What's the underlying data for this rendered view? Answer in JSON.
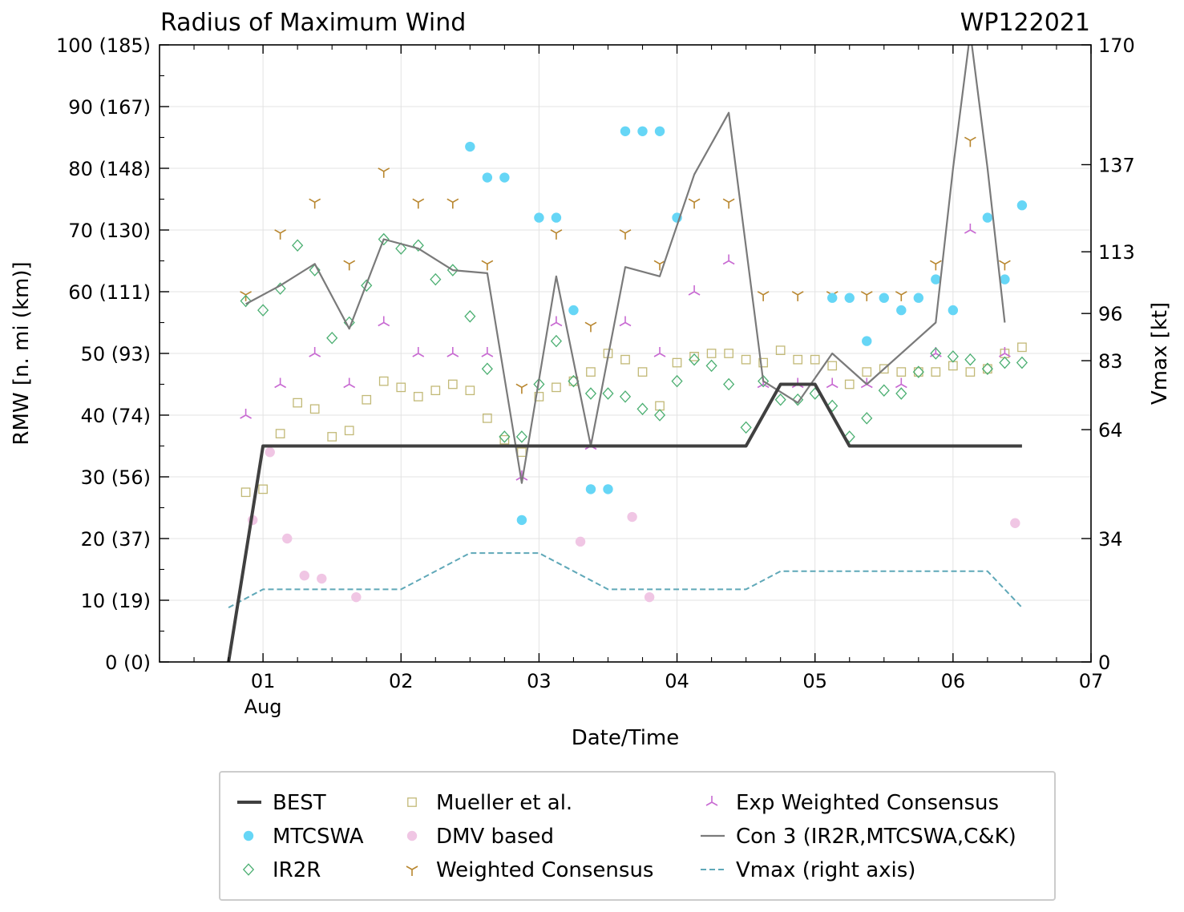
{
  "chart_data": {
    "type": "line",
    "title": "Radius of Maximum Wind",
    "storm_id": "WP122021",
    "xlabel": "Date/Time",
    "ylabel": "RMW [n. mi (km)]",
    "y2label": "Vmax [kt]",
    "x_unit": "days since 2021-08-01 00Z",
    "xlim": [
      -0.75,
      6.0
    ],
    "ylim": [
      0,
      100
    ],
    "y2lim": [
      0,
      170
    ],
    "x_ticks": [
      {
        "x": 0,
        "label": "01",
        "sublabel": "Aug"
      },
      {
        "x": 1,
        "label": "02"
      },
      {
        "x": 2,
        "label": "03"
      },
      {
        "x": 3,
        "label": "04"
      },
      {
        "x": 4,
        "label": "05"
      },
      {
        "x": 5,
        "label": "06"
      },
      {
        "x": 6,
        "label": "07"
      }
    ],
    "y_ticks": [
      {
        "v": 0,
        "label": "0 (0)"
      },
      {
        "v": 10,
        "label": "10 (19)"
      },
      {
        "v": 20,
        "label": "20 (37)"
      },
      {
        "v": 30,
        "label": "30 (56)"
      },
      {
        "v": 40,
        "label": "40 (74)"
      },
      {
        "v": 50,
        "label": "50 (93)"
      },
      {
        "v": 60,
        "label": "60 (111)"
      },
      {
        "v": 70,
        "label": "70 (130)"
      },
      {
        "v": 80,
        "label": "80 (148)"
      },
      {
        "v": 90,
        "label": "90 (167)"
      },
      {
        "v": 100,
        "label": "100 (185)"
      }
    ],
    "y2_ticks": [
      {
        "v": 0,
        "label": "0"
      },
      {
        "v": 34,
        "label": "34"
      },
      {
        "v": 64,
        "label": "64"
      },
      {
        "v": 83,
        "label": "83"
      },
      {
        "v": 96,
        "label": "96"
      },
      {
        "v": 113,
        "label": "113"
      },
      {
        "v": 137,
        "label": "137"
      },
      {
        "v": 170,
        "label": "170"
      }
    ],
    "series": [
      {
        "name": "BEST",
        "kind": "line",
        "color": "#404040",
        "points": [
          [
            -0.25,
            0
          ],
          [
            0,
            35
          ],
          [
            3.5,
            35
          ],
          [
            3.75,
            45
          ],
          [
            4.0,
            45
          ],
          [
            4.25,
            35
          ],
          [
            5.5,
            35
          ]
        ]
      },
      {
        "name": "MTCSWA",
        "kind": "marker",
        "marker": "circle",
        "color": "#66d6f6",
        "points": [
          [
            1.5,
            83.5
          ],
          [
            1.625,
            78.5
          ],
          [
            1.75,
            78.5
          ],
          [
            2.0,
            72
          ],
          [
            2.125,
            72
          ],
          [
            2.25,
            57
          ],
          [
            2.375,
            28
          ],
          [
            2.5,
            28
          ],
          [
            1.875,
            23
          ],
          [
            2.625,
            86
          ],
          [
            2.75,
            86
          ],
          [
            2.875,
            86
          ],
          [
            3.0,
            72
          ],
          [
            4.125,
            59
          ],
          [
            4.25,
            59
          ],
          [
            4.375,
            52
          ],
          [
            4.5,
            59
          ],
          [
            4.625,
            57
          ],
          [
            4.75,
            59
          ],
          [
            4.875,
            62
          ],
          [
            5.0,
            57
          ],
          [
            5.25,
            72
          ],
          [
            5.375,
            62
          ],
          [
            5.5,
            74
          ]
        ]
      },
      {
        "name": "IR2R",
        "kind": "marker",
        "marker": "diamond",
        "color": "#4caf72",
        "points": [
          [
            -0.125,
            58.5
          ],
          [
            0,
            57
          ],
          [
            0.125,
            60.5
          ],
          [
            0.25,
            67.5
          ],
          [
            0.375,
            63.5
          ],
          [
            0.5,
            52.5
          ],
          [
            0.625,
            55
          ],
          [
            0.75,
            61
          ],
          [
            0.875,
            68.5
          ],
          [
            1.0,
            67
          ],
          [
            1.125,
            67.5
          ],
          [
            1.25,
            62
          ],
          [
            1.375,
            63.5
          ],
          [
            1.5,
            56
          ],
          [
            1.625,
            47.5
          ],
          [
            1.75,
            36.5
          ],
          [
            1.875,
            36.5
          ],
          [
            2.0,
            45
          ],
          [
            2.125,
            52
          ],
          [
            2.25,
            45.5
          ],
          [
            2.375,
            43.5
          ],
          [
            2.5,
            43.5
          ],
          [
            2.625,
            43
          ],
          [
            2.75,
            41
          ],
          [
            2.875,
            40
          ],
          [
            3.0,
            45.5
          ],
          [
            3.125,
            49
          ],
          [
            3.25,
            48
          ],
          [
            3.375,
            45
          ],
          [
            3.5,
            38
          ],
          [
            3.625,
            45.5
          ],
          [
            3.75,
            42.5
          ],
          [
            3.875,
            42.5
          ],
          [
            4.0,
            43.5
          ],
          [
            4.125,
            41.5
          ],
          [
            4.25,
            36.5
          ],
          [
            4.375,
            39.5
          ],
          [
            4.5,
            44
          ],
          [
            4.625,
            43.5
          ],
          [
            4.75,
            47
          ],
          [
            4.875,
            50
          ],
          [
            5.0,
            49.5
          ],
          [
            5.125,
            49
          ],
          [
            5.25,
            47.5
          ],
          [
            5.375,
            48.5
          ],
          [
            5.5,
            48.5
          ]
        ]
      },
      {
        "name": "Mueller et al.",
        "kind": "marker",
        "marker": "square",
        "color": "#c2b977",
        "points": [
          [
            -0.125,
            27.5
          ],
          [
            0,
            28
          ],
          [
            0.125,
            37
          ],
          [
            0.25,
            42
          ],
          [
            0.375,
            41
          ],
          [
            0.5,
            36.5
          ],
          [
            0.625,
            37.5
          ],
          [
            0.75,
            42.5
          ],
          [
            0.875,
            45.5
          ],
          [
            1.0,
            44.5
          ],
          [
            1.125,
            43
          ],
          [
            1.25,
            44
          ],
          [
            1.375,
            45
          ],
          [
            1.5,
            44
          ],
          [
            1.625,
            39.5
          ],
          [
            1.75,
            36
          ],
          [
            1.875,
            34
          ],
          [
            2.0,
            43
          ],
          [
            2.125,
            44.5
          ],
          [
            2.25,
            45.5
          ],
          [
            2.375,
            47
          ],
          [
            2.5,
            50
          ],
          [
            2.625,
            49
          ],
          [
            2.75,
            47
          ],
          [
            2.875,
            41.5
          ],
          [
            3.0,
            48.5
          ],
          [
            3.125,
            49.5
          ],
          [
            3.25,
            50
          ],
          [
            3.375,
            50
          ],
          [
            3.5,
            49
          ],
          [
            3.625,
            48.5
          ],
          [
            3.75,
            50.5
          ],
          [
            3.875,
            49
          ],
          [
            4.0,
            49
          ],
          [
            4.125,
            48
          ],
          [
            4.25,
            45
          ],
          [
            4.375,
            47
          ],
          [
            4.5,
            47.5
          ],
          [
            4.625,
            47
          ],
          [
            4.75,
            47
          ],
          [
            4.875,
            47
          ],
          [
            5.0,
            48
          ],
          [
            5.125,
            47
          ],
          [
            5.25,
            47.5
          ],
          [
            5.375,
            50
          ],
          [
            5.5,
            51
          ]
        ]
      },
      {
        "name": "DMV based",
        "kind": "marker",
        "marker": "circle",
        "color": "#f0c6e4",
        "points": [
          [
            -0.075,
            23
          ],
          [
            0.05,
            34
          ],
          [
            0.175,
            20
          ],
          [
            0.3,
            14
          ],
          [
            0.425,
            13.5
          ],
          [
            0.675,
            10.5
          ],
          [
            2.3,
            19.5
          ],
          [
            2.675,
            23.5
          ],
          [
            2.8,
            10.5
          ],
          [
            5.45,
            22.5
          ]
        ]
      },
      {
        "name": "Weighted Consensus",
        "kind": "marker",
        "marker": "tri_down",
        "color": "#b8862e",
        "points": [
          [
            -0.125,
            59.5
          ],
          [
            0.125,
            69.5
          ],
          [
            0.375,
            74.5
          ],
          [
            0.625,
            64.5
          ],
          [
            0.875,
            79.5
          ],
          [
            1.125,
            74.5
          ],
          [
            1.375,
            74.5
          ],
          [
            1.625,
            64.5
          ],
          [
            1.875,
            44.5
          ],
          [
            2.125,
            69.5
          ],
          [
            2.375,
            54.5
          ],
          [
            2.625,
            69.5
          ],
          [
            2.875,
            64.5
          ],
          [
            3.125,
            74.5
          ],
          [
            3.375,
            74.5
          ],
          [
            3.625,
            59.5
          ],
          [
            3.875,
            59.5
          ],
          [
            4.125,
            59.5
          ],
          [
            4.375,
            59.5
          ],
          [
            4.625,
            59.5
          ],
          [
            4.875,
            64.5
          ],
          [
            5.125,
            84.5
          ],
          [
            5.375,
            64.5
          ]
        ]
      },
      {
        "name": "Exp Weighted Consensus",
        "kind": "marker",
        "marker": "tri_up",
        "color": "#c86ad2",
        "points": [
          [
            -0.125,
            40
          ],
          [
            0.125,
            45
          ],
          [
            0.375,
            50
          ],
          [
            0.625,
            45
          ],
          [
            0.875,
            55
          ],
          [
            1.125,
            50
          ],
          [
            1.375,
            50
          ],
          [
            1.625,
            50
          ],
          [
            1.875,
            30
          ],
          [
            2.125,
            55
          ],
          [
            2.375,
            35
          ],
          [
            2.625,
            55
          ],
          [
            2.875,
            50
          ],
          [
            3.125,
            60
          ],
          [
            3.375,
            65
          ],
          [
            3.625,
            45
          ],
          [
            3.875,
            45
          ],
          [
            4.125,
            45
          ],
          [
            4.375,
            45
          ],
          [
            4.625,
            45
          ],
          [
            4.875,
            50
          ],
          [
            5.125,
            70
          ],
          [
            5.375,
            50
          ]
        ]
      },
      {
        "name": "Con 3 (IR2R,MTCSWA,C&K)",
        "kind": "line",
        "color": "#7a7a7a",
        "points": [
          [
            -0.125,
            58
          ],
          [
            0.125,
            61
          ],
          [
            0.375,
            64.5
          ],
          [
            0.625,
            54
          ],
          [
            0.875,
            68.5
          ],
          [
            1.125,
            67
          ],
          [
            1.375,
            63.5
          ],
          [
            1.625,
            63
          ],
          [
            1.875,
            29
          ],
          [
            2.125,
            62.5
          ],
          [
            2.375,
            35
          ],
          [
            2.625,
            64
          ],
          [
            2.875,
            62.5
          ],
          [
            3.125,
            79
          ],
          [
            3.375,
            89
          ],
          [
            3.625,
            45.5
          ],
          [
            3.875,
            42
          ],
          [
            4.125,
            50
          ],
          [
            4.375,
            45
          ],
          [
            4.875,
            55
          ],
          [
            5.0,
            80
          ],
          [
            5.125,
            102
          ],
          [
            5.25,
            80
          ],
          [
            5.375,
            55
          ]
        ]
      },
      {
        "name": "Vmax (right axis)",
        "kind": "line",
        "axis": "right",
        "dash": true,
        "color": "#5fa8b8",
        "points": [
          [
            -0.25,
            15
          ],
          [
            0,
            20
          ],
          [
            1,
            20
          ],
          [
            1.5,
            30
          ],
          [
            2,
            30
          ],
          [
            2.5,
            20
          ],
          [
            3.5,
            20
          ],
          [
            3.75,
            25
          ],
          [
            5.25,
            25
          ],
          [
            5.5,
            15
          ]
        ]
      }
    ],
    "legend": {
      "placement": "bottom-center",
      "columns": 3,
      "order": [
        "BEST",
        "MTCSWA",
        "IR2R",
        "Mueller et al.",
        "DMV based",
        "Weighted Consensus",
        "Exp Weighted Consensus",
        "Con 3 (IR2R,MTCSWA,C&K)",
        "Vmax (right axis)"
      ]
    }
  }
}
